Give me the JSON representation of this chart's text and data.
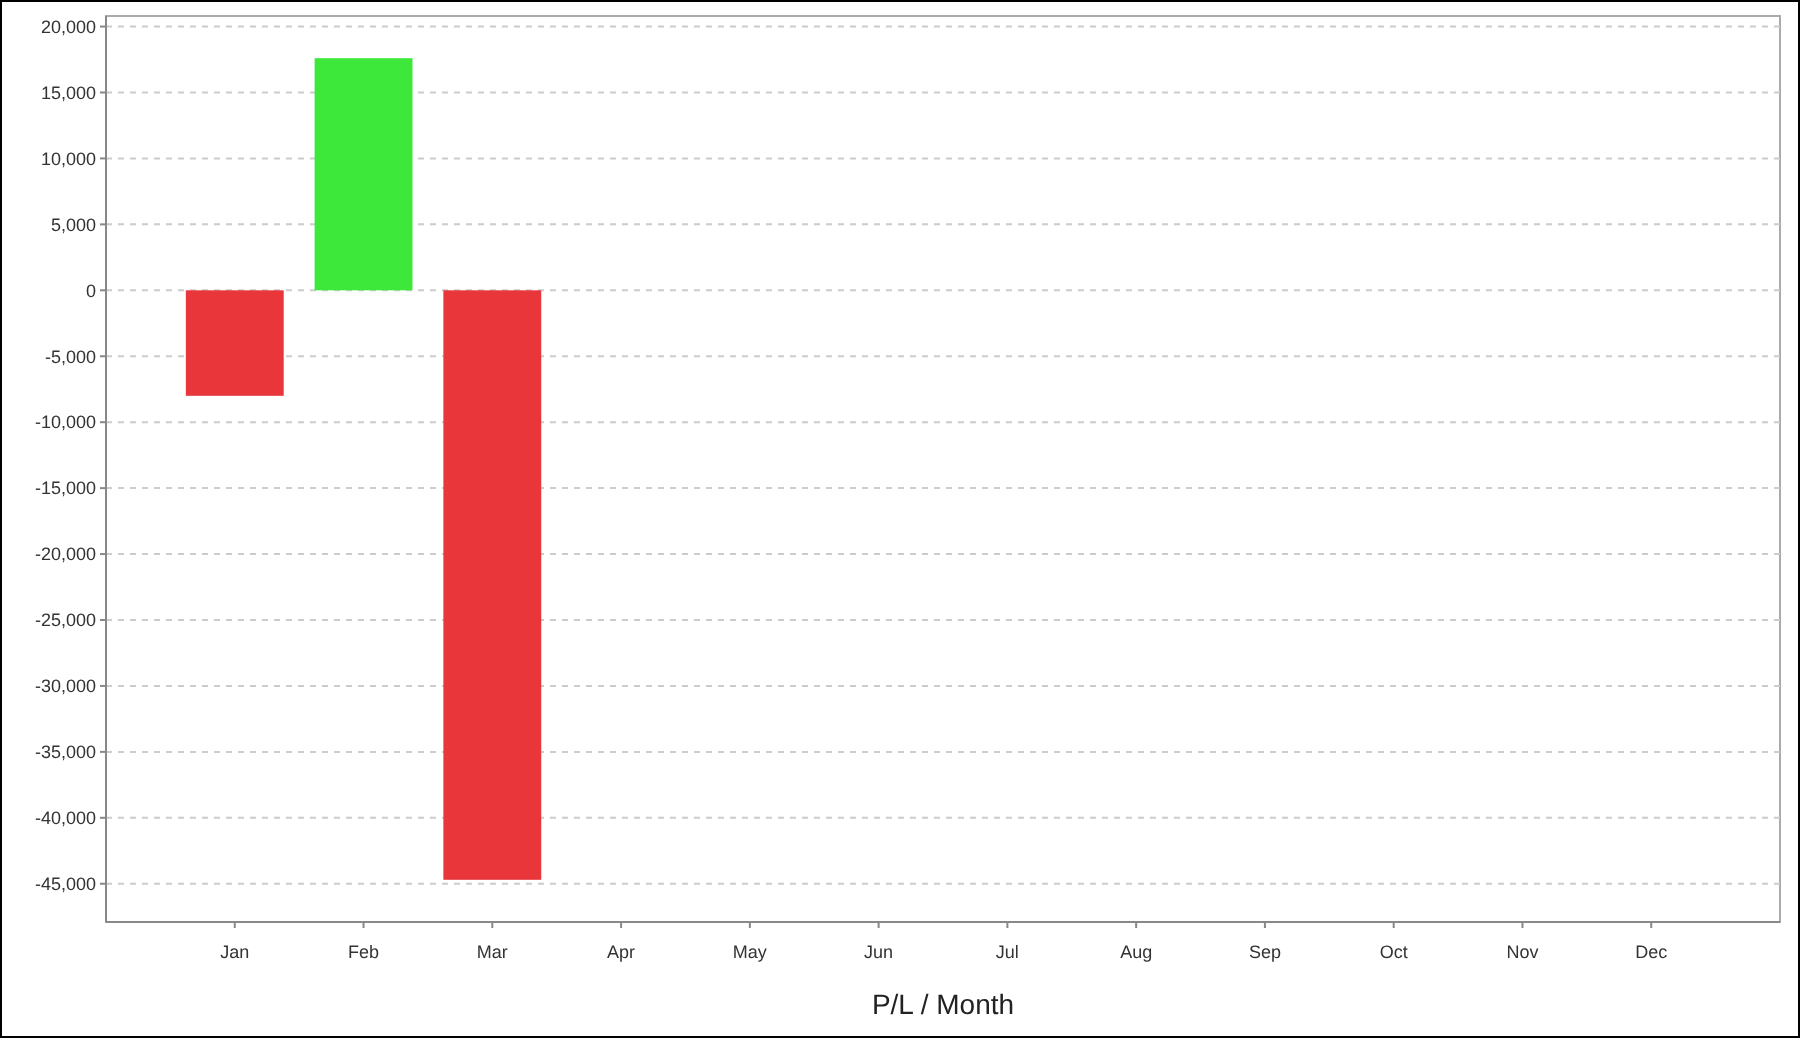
{
  "chart_data": {
    "type": "bar",
    "xlabel": "P/L / Month",
    "categories": [
      "Jan",
      "Feb",
      "Mar",
      "Apr",
      "May",
      "Jun",
      "Jul",
      "Aug",
      "Sep",
      "Oct",
      "Nov",
      "Dec"
    ],
    "values": [
      -8000,
      17600,
      -44700,
      null,
      null,
      null,
      null,
      null,
      null,
      null,
      null,
      null
    ],
    "colors": [
      "#e8363b",
      "#3de83a",
      "#e8363b",
      null,
      null,
      null,
      null,
      null,
      null,
      null,
      null,
      null
    ],
    "ylim": [
      -47900,
      20800
    ],
    "yticks": [
      {
        "value": -45000,
        "label": "-45,000"
      },
      {
        "value": -40000,
        "label": "-40,000"
      },
      {
        "value": -35000,
        "label": "-35,000"
      },
      {
        "value": -30000,
        "label": "-30,000"
      },
      {
        "value": -25000,
        "label": "-25,000"
      },
      {
        "value": -20000,
        "label": "-20,000"
      },
      {
        "value": -15000,
        "label": "-15,000"
      },
      {
        "value": -10000,
        "label": "-10,000"
      },
      {
        "value": -5000,
        "label": "-5,000"
      },
      0,
      {
        "value": 5000,
        "label": "5,000"
      },
      {
        "value": 10000,
        "label": "10,000"
      },
      {
        "value": 15000,
        "label": "15,000"
      },
      {
        "value": 20000,
        "label": "20,000"
      }
    ],
    "grid": "y"
  }
}
